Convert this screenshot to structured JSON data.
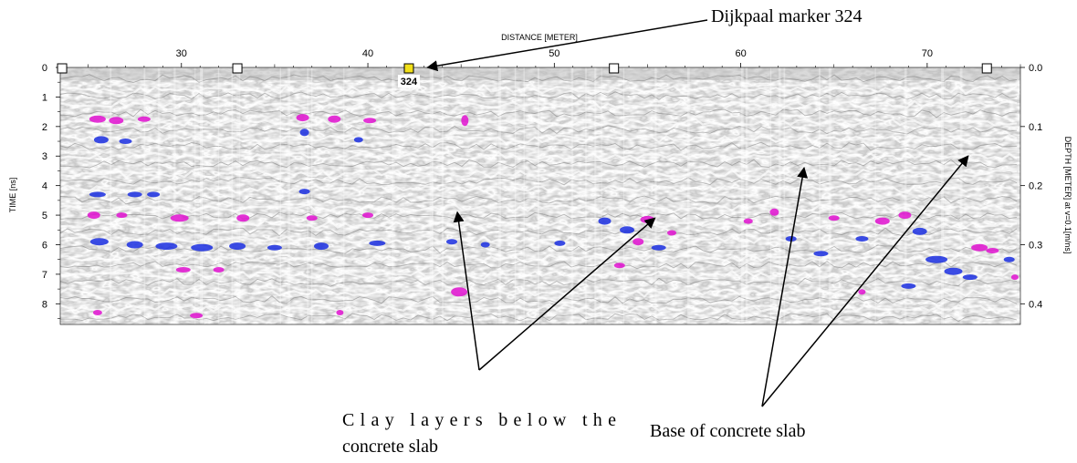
{
  "chart_data": {
    "type": "heatmap",
    "title": "",
    "xlabel": "DISTANCE [METER]",
    "ylabel_left": "TIME [ns]",
    "ylabel_right": "DEPTH [METER] at v=0.1[m/ns]",
    "xlim": [
      23.5,
      75
    ],
    "ylim_time": [
      0,
      8.7
    ],
    "ylim_depth": [
      0,
      0.435
    ],
    "x_ticks": [
      30,
      40,
      50,
      60,
      70
    ],
    "x_tick_labels": [
      "30",
      "40",
      "50",
      "60",
      "70"
    ],
    "y_left_ticks": [
      0,
      1,
      2,
      3,
      4,
      5,
      6,
      7,
      8
    ],
    "y_left_tick_labels": [
      "0",
      "1",
      "2",
      "3",
      "4",
      "5",
      "6",
      "7",
      "8"
    ],
    "y_right_ticks": [
      0.0,
      0.1,
      0.2,
      0.3,
      0.4
    ],
    "y_right_tick_labels": [
      "0.0",
      "0.1",
      "0.2",
      "0.3",
      "0.4"
    ],
    "colors": {
      "background": "#ffffff",
      "grey": "#8a8a8a",
      "magenta": "#e010d0",
      "blue": "#1a2ee0",
      "marker_fill": "#f2e01a"
    },
    "markers": [
      {
        "distance": 23.6,
        "label": "",
        "highlight": false
      },
      {
        "distance": 33.0,
        "label": "",
        "highlight": false
      },
      {
        "distance": 42.2,
        "label": "324",
        "highlight": true
      },
      {
        "distance": 53.2,
        "label": "",
        "highlight": false
      },
      {
        "distance": 73.2,
        "label": "",
        "highlight": false
      }
    ],
    "annotations": [
      {
        "text": "Dijkpaal marker 324",
        "points_to": [
          {
            "distance": 43.2,
            "time": 0.0
          }
        ]
      },
      {
        "lines": [
          "Clay layers below the",
          "concrete slab"
        ],
        "points_to": [
          {
            "distance": 44.8,
            "time": 4.9
          },
          {
            "distance": 55.4,
            "time": 5.1
          }
        ]
      },
      {
        "text": "Base of concrete slab",
        "points_to": [
          {
            "distance": 63.4,
            "time": 3.4
          },
          {
            "distance": 72.2,
            "time": 3.0
          }
        ]
      }
    ]
  }
}
